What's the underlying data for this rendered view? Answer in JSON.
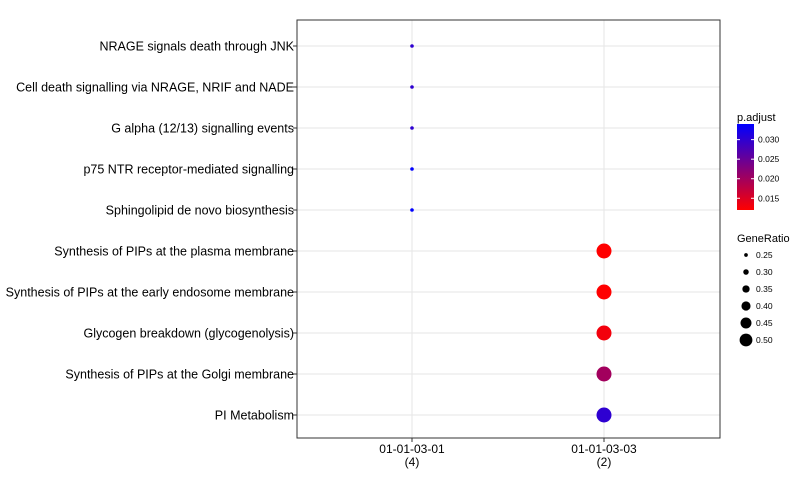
{
  "chart_data": {
    "type": "scatter",
    "title": "",
    "xlabel": "",
    "ylabel": "",
    "x_categories": [
      {
        "label": "01-01-03-01",
        "count": "(4)"
      },
      {
        "label": "01-01-03-03",
        "count": "(2)"
      }
    ],
    "y_categories": [
      "NRAGE signals death through JNK",
      "Cell death signalling via NRAGE, NRIF and NADE",
      "G alpha (12/13) signalling events",
      "p75 NTR receptor-mediated signalling",
      "Sphingolipid de novo biosynthesis",
      "Synthesis of PIPs at the plasma membrane",
      "Synthesis of PIPs at the early endosome membrane",
      "Glycogen breakdown (glycogenolysis)",
      "Synthesis of PIPs at the Golgi membrane",
      "PI Metabolism"
    ],
    "points": [
      {
        "x": "01-01-03-01",
        "y": "NRAGE signals death through JNK",
        "gene_ratio": 0.25,
        "p_adjust": 0.03
      },
      {
        "x": "01-01-03-01",
        "y": "Cell death signalling via NRAGE, NRIF and NADE",
        "gene_ratio": 0.25,
        "p_adjust": 0.03
      },
      {
        "x": "01-01-03-01",
        "y": "G alpha (12/13) signalling events",
        "gene_ratio": 0.25,
        "p_adjust": 0.03
      },
      {
        "x": "01-01-03-01",
        "y": "p75 NTR receptor-mediated signalling",
        "gene_ratio": 0.25,
        "p_adjust": 0.034
      },
      {
        "x": "01-01-03-01",
        "y": "Sphingolipid de novo biosynthesis",
        "gene_ratio": 0.25,
        "p_adjust": 0.034
      },
      {
        "x": "01-01-03-03",
        "y": "Synthesis of PIPs at the plasma membrane",
        "gene_ratio": 0.5,
        "p_adjust": 0.012
      },
      {
        "x": "01-01-03-03",
        "y": "Synthesis of PIPs at the early endosome membrane",
        "gene_ratio": 0.5,
        "p_adjust": 0.012
      },
      {
        "x": "01-01-03-03",
        "y": "Glycogen breakdown (glycogenolysis)",
        "gene_ratio": 0.5,
        "p_adjust": 0.013
      },
      {
        "x": "01-01-03-03",
        "y": "Synthesis of PIPs at the Golgi membrane",
        "gene_ratio": 0.5,
        "p_adjust": 0.02
      },
      {
        "x": "01-01-03-03",
        "y": "PI Metabolism",
        "gene_ratio": 0.5,
        "p_adjust": 0.03
      }
    ],
    "color_legend": {
      "title": "p.adjust",
      "ticks": [
        0.03,
        0.025,
        0.02,
        0.015
      ],
      "tick_labels": [
        "0.030",
        "0.025",
        "0.020",
        "0.015"
      ],
      "range": [
        0.012,
        0.034
      ],
      "low_color": "#FF0000",
      "high_color": "#0000FF"
    },
    "size_legend": {
      "title": "GeneRatio",
      "values": [
        0.25,
        0.3,
        0.35,
        0.4,
        0.45,
        0.5
      ],
      "labels": [
        "0.25",
        "0.30",
        "0.35",
        "0.40",
        "0.45",
        "0.50"
      ]
    },
    "grid": true,
    "legend_position": "right"
  }
}
